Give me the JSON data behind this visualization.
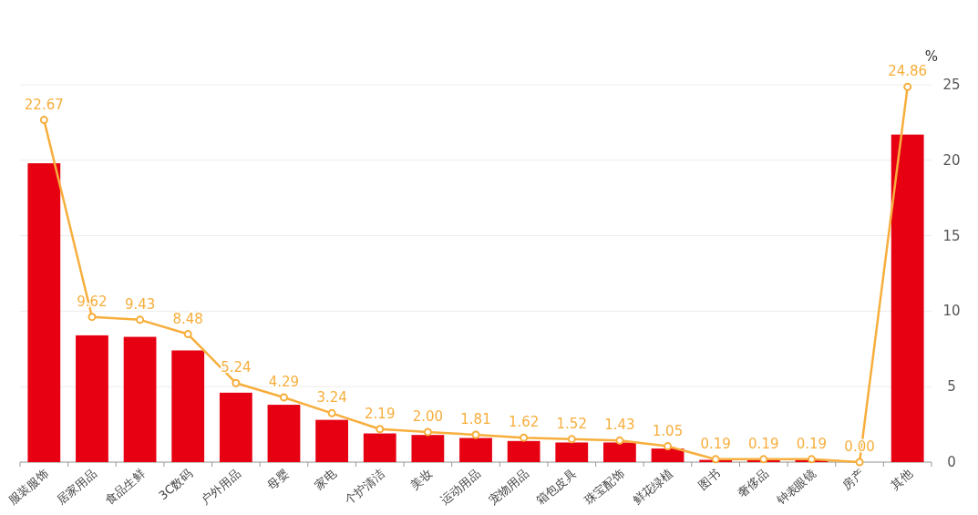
{
  "chart_data": {
    "type": "bar",
    "ylabel": "%",
    "categories": [
      "服装服饰",
      "居家用品",
      "食品生鲜",
      "3C数码",
      "户外用品",
      "母婴",
      "家电",
      "个护清洁",
      "美妆",
      "运动用品",
      "宠物用品",
      "箱包皮具",
      "珠宝配饰",
      "鲜花绿植",
      "图书",
      "奢侈品",
      "钟表眼镜",
      "房产",
      "其他"
    ],
    "series": [
      {
        "color": "#e60012",
        "values": [
          19.8,
          8.4,
          8.3,
          7.4,
          4.6,
          3.8,
          2.8,
          1.9,
          1.8,
          1.6,
          1.4,
          1.3,
          1.3,
          0.9,
          0.15,
          0.15,
          0.15,
          0,
          21.7
        ]
      },
      {
        "type": "line",
        "color": "#f7ae3c",
        "marker": "circle",
        "values": [
          22.67,
          9.62,
          9.43,
          8.48,
          5.24,
          4.29,
          3.24,
          2.19,
          2.0,
          1.81,
          1.62,
          1.52,
          1.43,
          1.05,
          0.19,
          0.19,
          0.19,
          0.0,
          24.86
        ],
        "value_labels": [
          "22.67",
          "9.62",
          "9.43",
          "8.48",
          "5.24",
          "4.29",
          "3.24",
          "2.19",
          "2.00",
          "1.81",
          "1.62",
          "1.52",
          "1.43",
          "1.05",
          "0.19",
          "0.19",
          "0.19",
          "0.00",
          "24.86"
        ]
      }
    ],
    "ylim": [
      0,
      25
    ],
    "yticks": [
      0,
      5,
      10,
      15,
      20,
      25
    ],
    "grid": "y"
  }
}
